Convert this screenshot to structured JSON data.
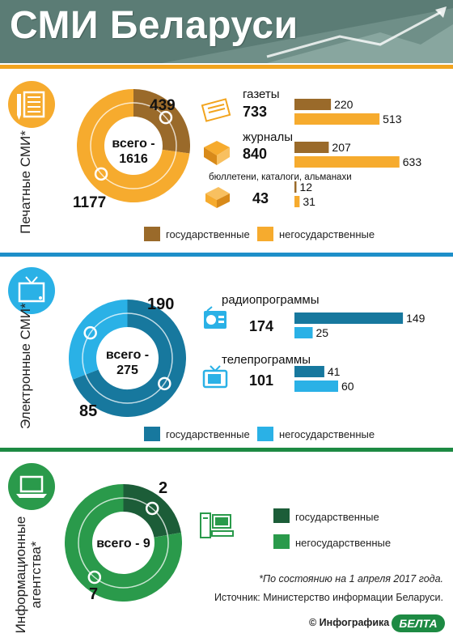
{
  "title": "СМИ Беларуси",
  "colors": {
    "print_state": "#9a6a2a",
    "print_nonstate": "#f6ab2e",
    "elec_state": "#17789e",
    "elec_nonstate": "#2ab1e6",
    "agency_state": "#1c5d38",
    "agency_nonstate": "#2a9a4b",
    "header_bg": "#5b7c75",
    "line_orange": "#f2a41e",
    "line_blue": "#1d8fc9",
    "line_green": "#1d8a43"
  },
  "icons": [
    "newspaper-icon",
    "magazine-icon",
    "book-icon",
    "radio-icon",
    "tv-icon",
    "computer-icon",
    "document-icon"
  ],
  "sections": {
    "print": {
      "label": "Печатные СМИ*",
      "total_text": "всего -",
      "total_value": "1616",
      "state_value": "439",
      "nonstate_value": "1177",
      "items": [
        {
          "name": "газеты",
          "total": "733",
          "state": "220",
          "nonstate": "513"
        },
        {
          "name": "журналы",
          "total": "840",
          "state": "207",
          "nonstate": "633"
        },
        {
          "name": "бюллетени, каталоги, альманахи",
          "total": "43",
          "state": "12",
          "nonstate": "31"
        }
      ],
      "legend_state": "государственные",
      "legend_nonstate": "негосударственные"
    },
    "electronic": {
      "label": "Электронные СМИ*",
      "total_text": "всего -",
      "total_value": "275",
      "state_value": "190",
      "nonstate_value": "85",
      "items": [
        {
          "name": "радиопрограммы",
          "total": "174",
          "state": "149",
          "nonstate": "25"
        },
        {
          "name": "телепрограммы",
          "total": "101",
          "state": "41",
          "nonstate": "60"
        }
      ],
      "legend_state": "государственные",
      "legend_nonstate": "негосударственные"
    },
    "agencies": {
      "label_line1": "Информационные",
      "label_line2": "агентства*",
      "total_text": "всего - 9",
      "state_value": "2",
      "nonstate_value": "7",
      "legend_state": "государственные",
      "legend_nonstate": "негосударственные"
    }
  },
  "footnote": "*По состоянию на 1 апреля 2017 года.",
  "source": "Источник: Министерство информации Беларуси.",
  "credit": "© Инфографика",
  "logo": "БЕЛТА",
  "chart_data": [
    {
      "type": "pie",
      "categories": [
        "государственные",
        "негосударственные"
      ],
      "values": [
        439,
        1177
      ],
      "title": "Печатные СМИ*"
    },
    {
      "type": "bar",
      "categories": [
        "газеты",
        "журналы",
        "бюллетени, каталоги, альманахи"
      ],
      "series": [
        {
          "name": "государственные",
          "values": [
            220,
            207,
            12
          ]
        },
        {
          "name": "негосударственные",
          "values": [
            513,
            633,
            31
          ]
        }
      ]
    },
    {
      "type": "pie",
      "categories": [
        "государственные",
        "негосударственные"
      ],
      "values": [
        190,
        85
      ],
      "title": "Электронные СМИ*"
    },
    {
      "type": "bar",
      "categories": [
        "радиопрограммы",
        "телепрограммы"
      ],
      "series": [
        {
          "name": "государственные",
          "values": [
            149,
            41
          ]
        },
        {
          "name": "негосударственные",
          "values": [
            25,
            60
          ]
        }
      ]
    },
    {
      "type": "pie",
      "categories": [
        "государственные",
        "негосударственные"
      ],
      "values": [
        2,
        7
      ],
      "title": "Информационные агентства*"
    }
  ]
}
